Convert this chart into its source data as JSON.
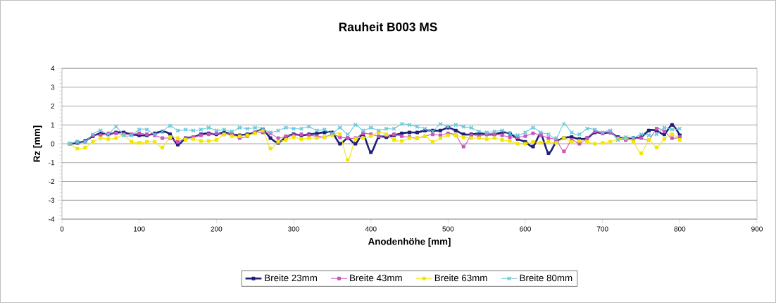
{
  "chart_data": {
    "type": "line",
    "title": "Rauheit B003 MS",
    "xlabel": "Anodenhöhe [mm]",
    "ylabel": "Rz [mm]",
    "x": [
      10,
      20,
      30,
      40,
      50,
      60,
      70,
      80,
      90,
      100,
      110,
      120,
      130,
      140,
      150,
      160,
      170,
      180,
      190,
      200,
      210,
      220,
      230,
      240,
      250,
      260,
      270,
      280,
      290,
      300,
      310,
      320,
      330,
      340,
      350,
      360,
      370,
      380,
      390,
      400,
      410,
      420,
      430,
      440,
      450,
      460,
      470,
      480,
      490,
      500,
      510,
      520,
      530,
      540,
      550,
      560,
      570,
      580,
      590,
      600,
      610,
      620,
      630,
      640,
      650,
      660,
      670,
      680,
      690,
      700,
      710,
      720,
      730,
      740,
      750,
      760,
      770,
      780,
      790,
      800
    ],
    "series": [
      {
        "name": "Breite 23mm",
        "color": "#1f1f7a",
        "marker": "square",
        "values": [
          0,
          0.05,
          0.15,
          0.4,
          0.55,
          0.5,
          0.6,
          0.6,
          0.5,
          0.45,
          0.45,
          0.55,
          0.65,
          0.5,
          -0.05,
          0.3,
          0.35,
          0.5,
          0.55,
          0.5,
          0.6,
          0.5,
          0.45,
          0.5,
          0.6,
          0.75,
          0.3,
          0.05,
          0.35,
          0.5,
          0.45,
          0.5,
          0.55,
          0.6,
          0.6,
          0.0,
          0.3,
          0.0,
          0.5,
          -0.45,
          0.35,
          0.35,
          0.45,
          0.55,
          0.6,
          0.6,
          0.7,
          0.7,
          0.7,
          0.85,
          0.7,
          0.5,
          0.5,
          0.55,
          0.5,
          0.5,
          0.6,
          0.55,
          0.25,
          0.1,
          -0.15,
          0.5,
          -0.5,
          0.1,
          0.3,
          0.35,
          0.25,
          0.3,
          0.6,
          0.55,
          0.6,
          0.35,
          0.3,
          0.3,
          0.35,
          0.7,
          0.7,
          0.5,
          1.0,
          0.45
        ]
      },
      {
        "name": "Breite 43mm",
        "color": "#cc55bb",
        "marker": "square",
        "values": [
          0,
          0.1,
          0.1,
          0.45,
          0.45,
          0.55,
          0.55,
          0.5,
          0.5,
          0.55,
          0.5,
          0.45,
          0.3,
          0.3,
          0.1,
          0.3,
          0.35,
          0.45,
          0.5,
          0.55,
          0.5,
          0.55,
          0.3,
          0.4,
          0.6,
          0.6,
          0.55,
          0.3,
          0.4,
          0.45,
          0.5,
          0.45,
          0.4,
          0.35,
          0.5,
          0.35,
          0.3,
          0.3,
          0.55,
          0.5,
          0.4,
          0.45,
          0.5,
          0.4,
          0.35,
          0.3,
          0.4,
          0.5,
          0.45,
          0.55,
          0.45,
          -0.15,
          0.45,
          0.4,
          0.5,
          0.5,
          0.45,
          0.35,
          0.35,
          0.4,
          0.55,
          0.45,
          0.3,
          0.2,
          -0.4,
          0.2,
          0.0,
          0.3,
          0.65,
          0.55,
          0.6,
          0.3,
          0.2,
          0.25,
          0.3,
          0.2,
          0.8,
          0.65,
          0.3,
          0.35
        ]
      },
      {
        "name": "Breite 63mm",
        "color": "#f2e600",
        "marker": "square",
        "values": [
          0,
          -0.25,
          -0.2,
          0.1,
          0.3,
          0.25,
          0.3,
          0.45,
          0.1,
          0.05,
          0.1,
          0.1,
          -0.2,
          0.35,
          0.3,
          0.2,
          0.25,
          0.15,
          0.15,
          0.2,
          0.5,
          0.4,
          0.4,
          0.45,
          0.55,
          0.7,
          -0.25,
          0.1,
          0.2,
          0.35,
          0.25,
          0.3,
          0.3,
          0.35,
          0.45,
          0.5,
          -0.85,
          0.25,
          0.3,
          0.4,
          0.6,
          0.5,
          0.2,
          0.15,
          0.3,
          0.3,
          0.4,
          0.1,
          0.3,
          0.45,
          0.45,
          0.35,
          0.3,
          0.3,
          0.25,
          0.3,
          0.2,
          0.15,
          0.0,
          0.0,
          0.1,
          0.05,
          0.1,
          0.05,
          0.3,
          0.1,
          0.15,
          0.1,
          0.0,
          0.05,
          0.1,
          0.25,
          0.3,
          0.1,
          -0.5,
          0.2,
          -0.2,
          0.25,
          0.5,
          0.2
        ]
      },
      {
        "name": "Breite 80mm",
        "color": "#66c8dc",
        "marker": "cross",
        "values": [
          0,
          0.1,
          0.1,
          0.5,
          0.7,
          0.5,
          0.9,
          0.45,
          0.45,
          0.75,
          0.75,
          0.5,
          0.65,
          0.95,
          0.7,
          0.75,
          0.7,
          0.75,
          0.85,
          0.7,
          0.75,
          0.65,
          0.85,
          0.8,
          0.85,
          0.8,
          0.6,
          0.7,
          0.85,
          0.8,
          0.8,
          0.9,
          0.7,
          0.75,
          0.55,
          0.85,
          0.5,
          1.0,
          0.7,
          0.85,
          0.7,
          0.8,
          0.8,
          1.05,
          1.0,
          0.9,
          0.8,
          0.65,
          1.05,
          0.9,
          1.0,
          0.9,
          0.85,
          0.65,
          0.6,
          0.65,
          0.7,
          0.55,
          0.45,
          0.6,
          0.85,
          0.6,
          0.5,
          0.3,
          1.05,
          0.6,
          0.5,
          0.8,
          0.75,
          0.6,
          0.7,
          0.2,
          0.35,
          0.3,
          0.5,
          0.45,
          0.5,
          0.85,
          0.75,
          0.8
        ]
      }
    ],
    "xlim": [
      0,
      900
    ],
    "xticks": [
      0,
      100,
      200,
      300,
      400,
      500,
      600,
      700,
      800,
      900
    ],
    "ylim": [
      -4,
      4
    ],
    "yticks": [
      -4,
      -3,
      -2,
      -1,
      0,
      1,
      2,
      3,
      4
    ],
    "grid": "y",
    "legend": "bottom",
    "line_style": "solid"
  }
}
